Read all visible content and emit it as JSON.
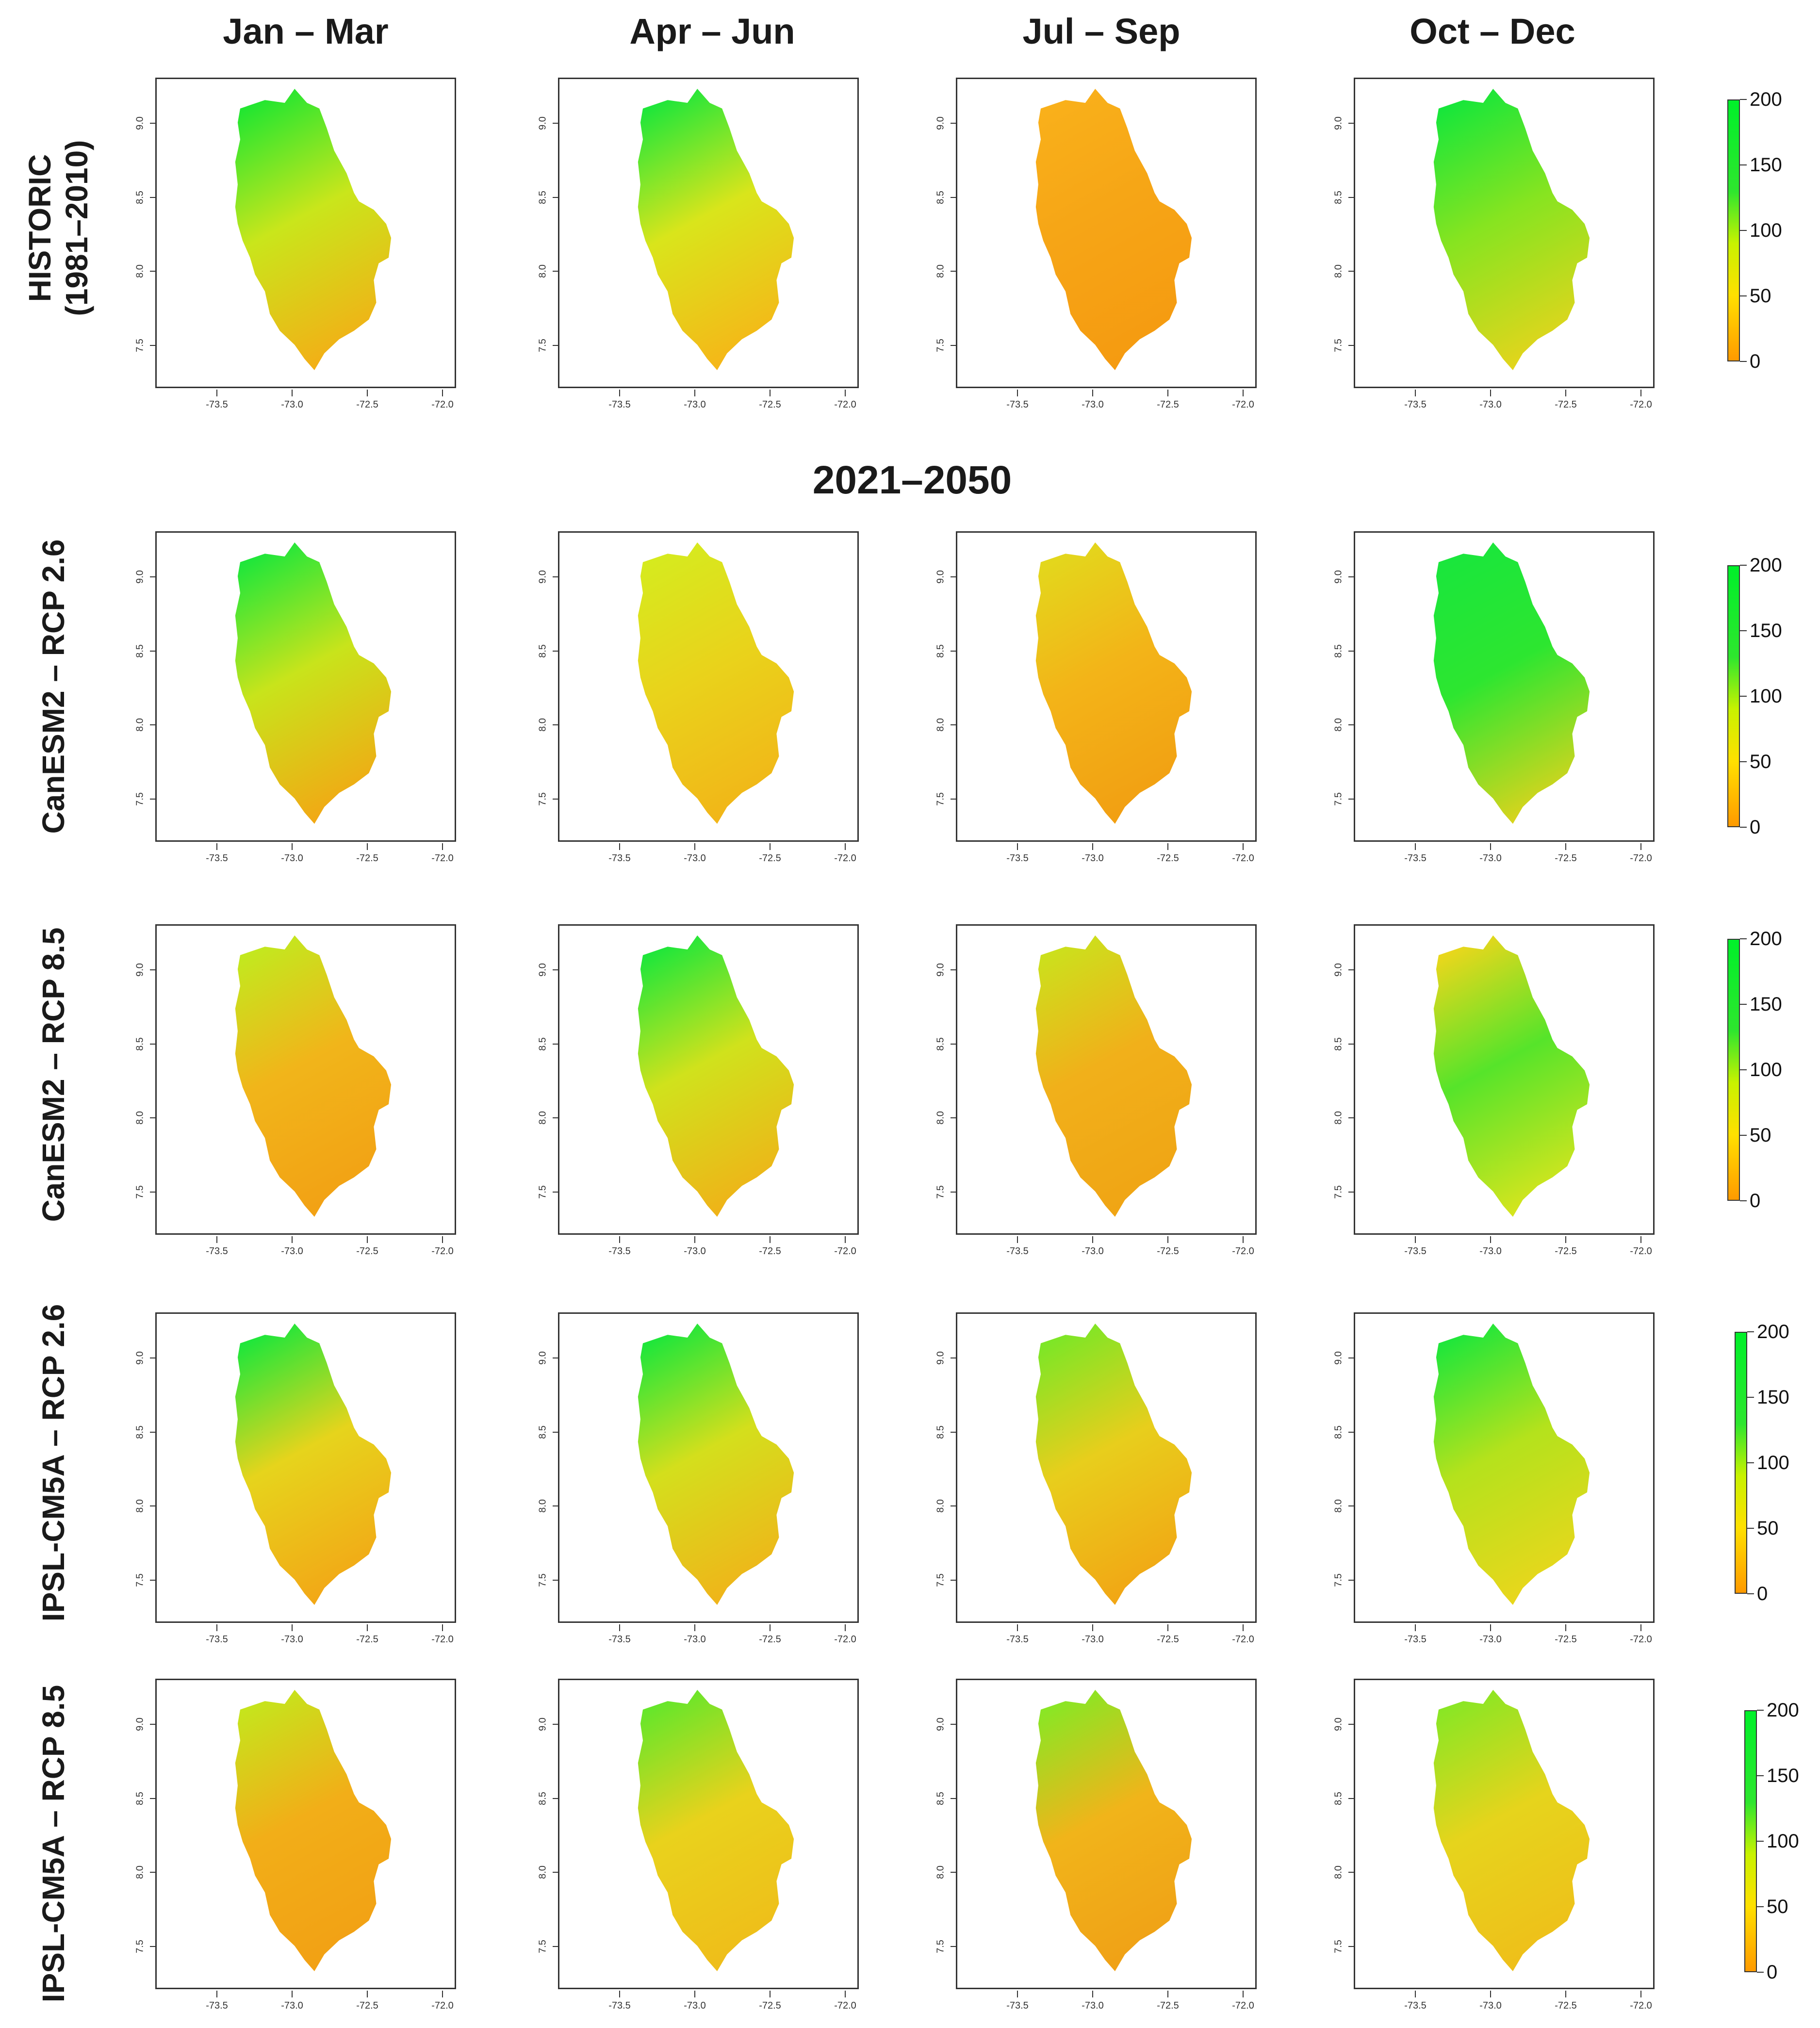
{
  "columns": [
    "Jan – Mar",
    "Apr – Jun",
    "Jul – Sep",
    "Oct – Dec"
  ],
  "period_header": "2021–2050",
  "rows": [
    {
      "label_line1": "HISTORIC",
      "label_line2": "(1981–2010)"
    },
    {
      "label_line1": "CanESM2 – RCP 2.6",
      "label_line2": ""
    },
    {
      "label_line1": "CanESM2 – RCP 8.5",
      "label_line2": ""
    },
    {
      "label_line1": "IPSL-CM5A – RCP 2.6",
      "label_line2": ""
    },
    {
      "label_line1": "IPSL-CM5A – RCP 8.5",
      "label_line2": ""
    }
  ],
  "axes": {
    "x_ticks": [
      "-73.5",
      "-73.0",
      "-72.5",
      "-72.0"
    ],
    "y_ticks": [
      "7.5",
      "8.0",
      "8.5",
      "9.0"
    ],
    "x_range": [
      -73.9,
      -71.9
    ],
    "y_range": [
      7.2,
      9.3
    ]
  },
  "legend": {
    "ticks": [
      "0",
      "50",
      "100",
      "150",
      "200"
    ],
    "min": 0,
    "max": 200
  },
  "colors": {
    "low": "#ff9a00",
    "mid": "#ffe000",
    "high": "#00f02a",
    "frame": "#333333"
  }
}
